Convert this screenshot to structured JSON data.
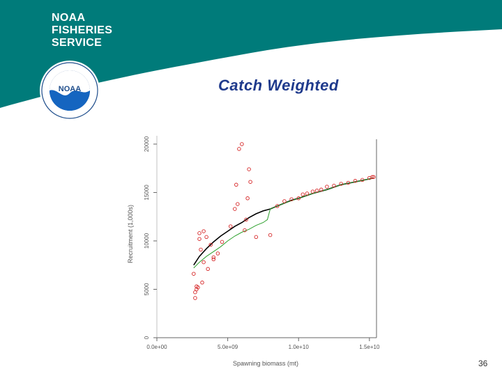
{
  "header": {
    "org_lines": [
      "NOAA",
      "FISHERIES",
      "SERVICE"
    ],
    "logo_text": "NOAA",
    "banner_color": "#007b7a"
  },
  "slide": {
    "title": "Catch Weighted",
    "page_number": "36"
  },
  "chart_data": {
    "type": "scatter",
    "xlabel": "Spawning biomass (mt)",
    "ylabel": "Recruitment (1,000s)",
    "xlim": [
      0,
      15500000000
    ],
    "ylim": [
      0,
      20500
    ],
    "x_ticks": [
      {
        "value": 0,
        "label": "0.0e+00"
      },
      {
        "value": 5000000000,
        "label": "5.0e+09"
      },
      {
        "value": 10000000000,
        "label": "1.0e+10"
      },
      {
        "value": 15000000000,
        "label": "1.5e+10"
      }
    ],
    "y_ticks": [
      {
        "value": 0,
        "label": "0"
      },
      {
        "value": 5000,
        "label": "5000"
      },
      {
        "value": 10000,
        "label": "10000"
      },
      {
        "value": 15000,
        "label": "15000"
      },
      {
        "value": 20000,
        "label": "20000"
      }
    ],
    "grid": false,
    "colors": {
      "points": "#d62728",
      "expected_curve": "#000000",
      "fitted_curve": "#2ca02c"
    },
    "series": [
      {
        "type": "scatter",
        "x": [
          2600000000.0,
          2700000000.0,
          2700000000.0,
          2800000000.0,
          2800000000.0,
          2900000000.0,
          3000000000.0,
          3000000000.0,
          3100000000.0,
          3200000000.0,
          3300000000.0,
          3300000000.0,
          3500000000.0,
          3600000000.0,
          3800000000.0,
          4000000000.0,
          4000000000.0,
          4300000000.0,
          4600000000.0,
          5200000000.0,
          5500000000.0,
          5600000000.0,
          5700000000.0,
          5800000000.0,
          6000000000.0,
          6200000000.0,
          6300000000.0,
          6400000000.0,
          6500000000.0,
          6600000000.0,
          7000000000.0,
          8000000000.0,
          8500000000.0,
          9000000000.0,
          9500000000.0,
          10000000000.0,
          10300000000.0,
          10600000000.0,
          11000000000.0,
          11300000000.0,
          11600000000.0,
          12000000000.0,
          12500000000.0,
          13000000000.0,
          13500000000.0,
          14000000000.0,
          14500000000.0,
          15000000000.0,
          15200000000.0,
          15300000000.0
        ],
        "y": [
          6600,
          4700,
          4100,
          5000,
          5300,
          5200,
          10200,
          10800,
          9100,
          5700,
          11000,
          7800,
          10400,
          7100,
          9600,
          8100,
          8300,
          8700,
          9900,
          11500,
          13300,
          15800,
          13800,
          19500,
          20000,
          11100,
          12200,
          14400,
          17400,
          16100,
          10400,
          10600,
          13600,
          14100,
          14300,
          14400,
          14800,
          14900,
          15100,
          15200,
          15300,
          15600,
          15700,
          15900,
          16000,
          16200,
          16300,
          16500,
          16600,
          16600
        ]
      },
      {
        "type": "line",
        "x": [
          2600000000.0,
          3000000000.0,
          3500000000.0,
          4000000000.0,
          4500000000.0,
          5000000000.0,
          5500000000.0,
          6000000000.0,
          6500000000.0,
          7000000000.0,
          7500000000.0,
          8000000000.0,
          8500000000.0,
          9000000000.0,
          9500000000.0,
          10000000000.0,
          11000000000.0,
          12000000000.0,
          13000000000.0,
          14000000000.0,
          15000000000.0,
          15300000000.0
        ],
        "y": [
          7500,
          8400,
          9200,
          9900,
          10500,
          11000,
          11500,
          11900,
          12400,
          12800,
          13100,
          13300,
          13600,
          13900,
          14200,
          14400,
          14900,
          15300,
          15800,
          16100,
          16400,
          16500
        ]
      },
      {
        "type": "line",
        "x": [
          2600000000.0,
          3000000000.0,
          3500000000.0,
          4000000000.0,
          4500000000.0,
          5000000000.0,
          5500000000.0,
          6000000000.0,
          6500000000.0,
          7000000000.0,
          7500000000.0,
          7800000000.0,
          8000000000.0,
          8500000000.0,
          9000000000.0,
          10000000000.0,
          11000000000.0,
          12000000000.0,
          13000000000.0,
          14000000000.0,
          15000000000.0,
          15300000000.0
        ],
        "y": [
          7200,
          7800,
          8400,
          8900,
          9400,
          10000,
          10500,
          10900,
          11200,
          11600,
          11900,
          12200,
          13300,
          13600,
          13900,
          14400,
          14900,
          15300,
          15800,
          16100,
          16400,
          16500
        ]
      }
    ]
  }
}
